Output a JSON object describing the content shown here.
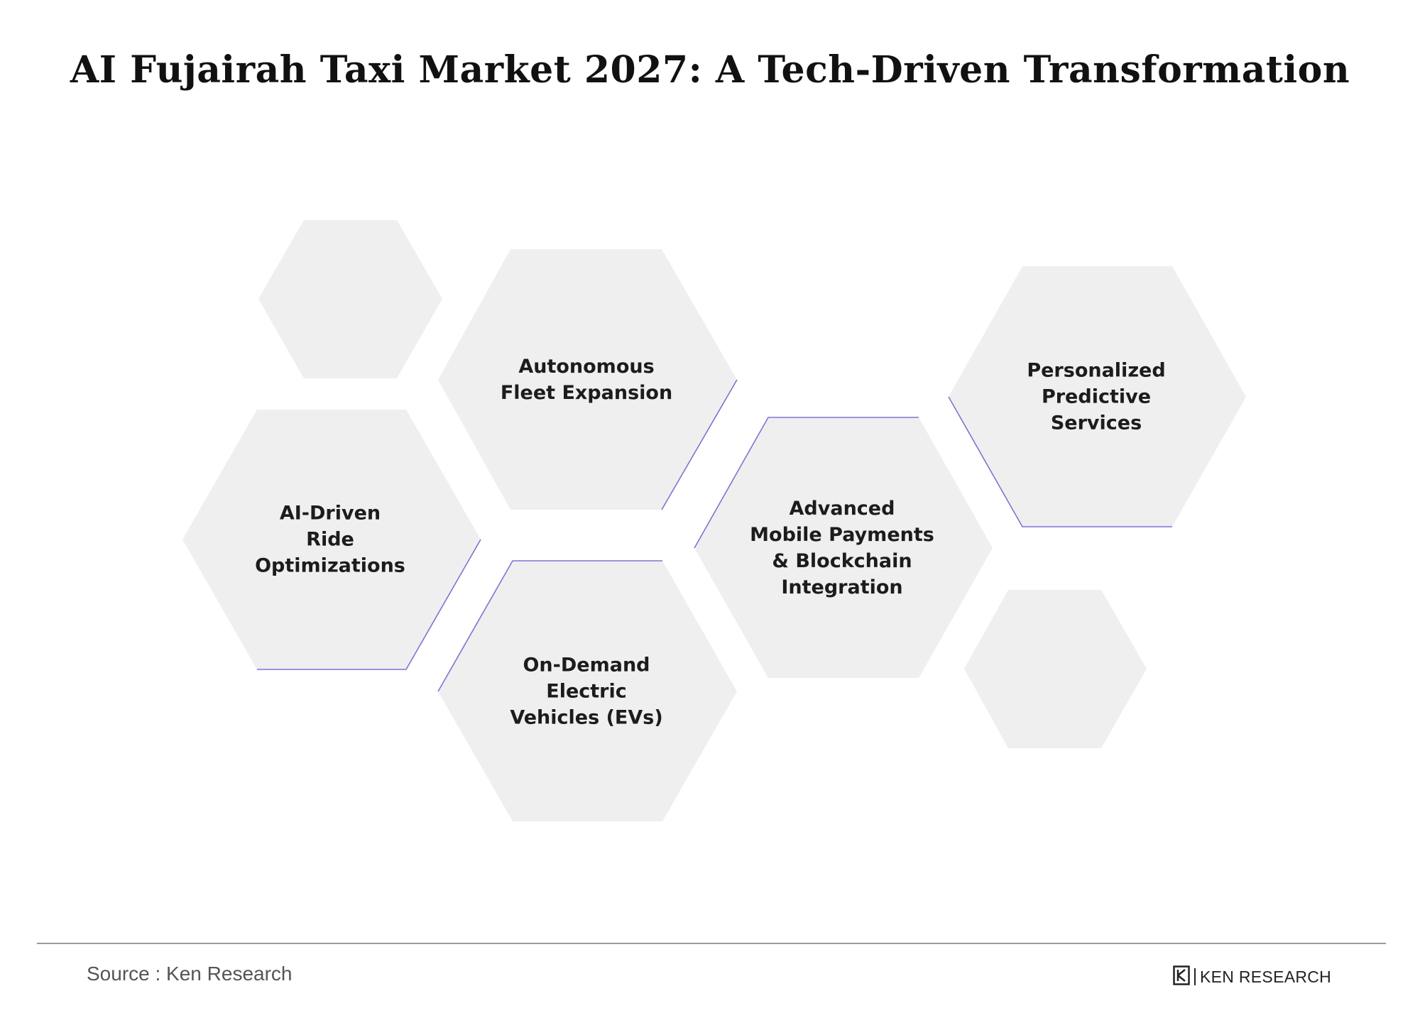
{
  "title": "AI Fujairah Taxi Market 2027: A Tech-Driven Transformation",
  "hexagons": [
    {
      "label": "Autonomous\nFleet Expansion"
    },
    {
      "label": "AI-Driven\nRide\nOptimizations"
    },
    {
      "label": "On-Demand\nElectric\nVehicles (EVs)"
    },
    {
      "label": "Advanced\nMobile Payments\n& Blockchain\nIntegration"
    },
    {
      "label": "Personalized\nPredictive\nServices"
    }
  ],
  "colors": {
    "hex_fill": "#efefef",
    "accent_line": "#7b75d4",
    "title_text": "#111111"
  },
  "footer": {
    "source": "Source : Ken Research",
    "brand": "KEN RESEARCH",
    "brand_icon": "ken-research-logo-icon"
  }
}
